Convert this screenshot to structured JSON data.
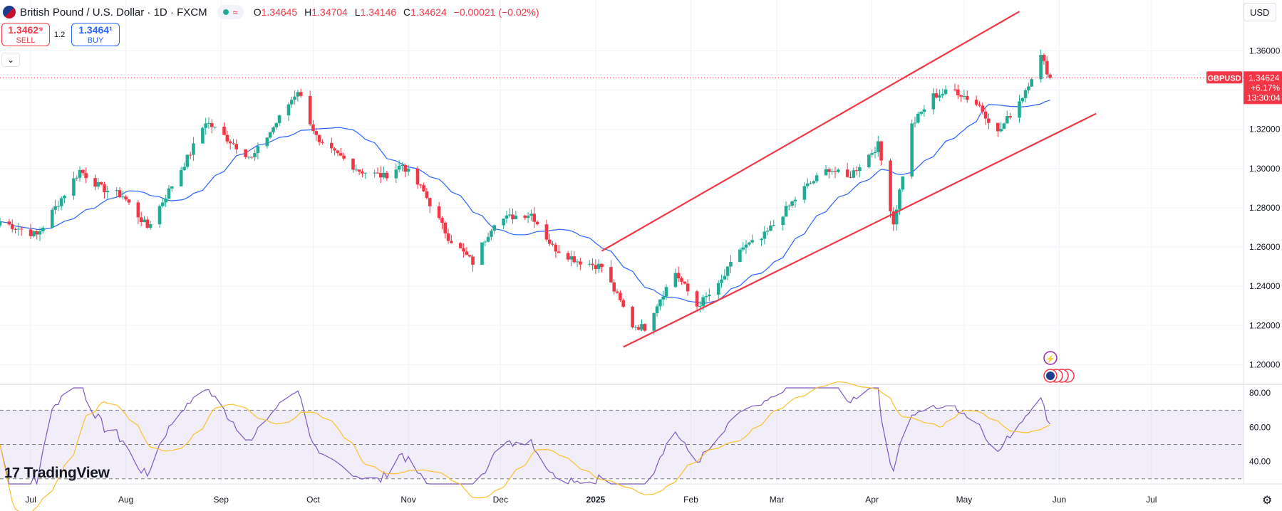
{
  "header": {
    "symbol_title": "British Pound / U.S. Dollar · 1D · FXCM",
    "ohlc": [
      {
        "k": "O",
        "v": "1.34645"
      },
      {
        "k": "H",
        "v": "1.34704"
      },
      {
        "k": "L",
        "v": "1.34146"
      },
      {
        "k": "C",
        "v": "1.34624"
      },
      {
        "k": "",
        "v": "−0.00021 (−0.02%)"
      }
    ]
  },
  "trade": {
    "sell_price": "1.3462⁹",
    "sell_label": "SELL",
    "spread": "1.2",
    "buy_price": "1.3464¹",
    "buy_label": "BUY"
  },
  "currency": "USD",
  "price_tag": {
    "symbol": "GBPUSD",
    "price": "1.34624",
    "change": "+6.17%",
    "countdown": "13:30:04"
  },
  "brand": "TradingView",
  "colors": {
    "up": "#22ab94",
    "down": "#f23645",
    "ma": "#2962ff",
    "rsi": "#7e57c2",
    "rsi_ma": "#fbc02d",
    "channel": "#f23645"
  },
  "chart_data": [
    {
      "type": "candlestick",
      "title": "British Pound / U.S. Dollar · 1D · FXCM",
      "ylim": [
        1.19,
        1.375
      ],
      "y_ticks": [
        "1.36000",
        "1.34000",
        "1.32000",
        "1.30000",
        "1.28000",
        "1.26000",
        "1.24000",
        "1.22000",
        "1.20000"
      ],
      "x_ticks": [
        "Jul",
        "Aug",
        "Sep",
        "Oct",
        "Nov",
        "Dec",
        "2025",
        "Feb",
        "Mar",
        "Apr",
        "May",
        "Jun",
        "Jul"
      ],
      "x_tick_dates": [
        "2024-07-01",
        "2024-08-01",
        "2024-09-01",
        "2024-10-01",
        "2024-11-01",
        "2024-12-01",
        "2025-01-01",
        "2025-02-01",
        "2025-03-01",
        "2025-04-01",
        "2025-05-01",
        "2025-06-01",
        "2025-07-01"
      ],
      "x_range": [
        "2024-06-21",
        "2025-07-31"
      ],
      "last_price": 1.34624,
      "close_waypoints": [
        [
          "2024-06-21",
          1.273
        ],
        [
          "2024-07-03",
          1.266
        ],
        [
          "2024-07-17",
          1.299
        ],
        [
          "2024-07-24",
          1.29
        ],
        [
          "2024-07-31",
          1.286
        ],
        [
          "2024-08-05",
          1.276
        ],
        [
          "2024-08-08",
          1.27
        ],
        [
          "2024-08-14",
          1.286
        ],
        [
          "2024-08-22",
          1.308
        ],
        [
          "2024-08-27",
          1.324
        ],
        [
          "2024-09-04",
          1.314
        ],
        [
          "2024-09-11",
          1.305
        ],
        [
          "2024-09-18",
          1.321
        ],
        [
          "2024-09-26",
          1.34
        ],
        [
          "2024-10-03",
          1.312
        ],
        [
          "2024-10-10",
          1.306
        ],
        [
          "2024-10-16",
          1.299
        ],
        [
          "2024-10-24",
          1.296
        ],
        [
          "2024-10-30",
          1.302
        ],
        [
          "2024-11-06",
          1.288
        ],
        [
          "2024-11-14",
          1.265
        ],
        [
          "2024-11-22",
          1.252
        ],
        [
          "2024-11-29",
          1.273
        ],
        [
          "2024-12-06",
          1.276
        ],
        [
          "2024-12-11",
          1.277
        ],
        [
          "2024-12-18",
          1.26
        ],
        [
          "2024-12-26",
          1.253
        ],
        [
          "2025-01-03",
          1.25
        ],
        [
          "2025-01-07",
          1.238
        ],
        [
          "2025-01-13",
          1.22
        ],
        [
          "2025-01-17",
          1.219
        ],
        [
          "2025-01-22",
          1.234
        ],
        [
          "2025-01-27",
          1.247
        ],
        [
          "2025-02-03",
          1.23
        ],
        [
          "2025-02-10",
          1.24
        ],
        [
          "2025-02-17",
          1.259
        ],
        [
          "2025-02-24",
          1.264
        ],
        [
          "2025-03-04",
          1.279
        ],
        [
          "2025-03-10",
          1.29
        ],
        [
          "2025-03-18",
          1.3
        ],
        [
          "2025-03-24",
          1.295
        ],
        [
          "2025-04-03",
          1.312
        ],
        [
          "2025-04-08",
          1.272
        ],
        [
          "2025-04-14",
          1.322
        ],
        [
          "2025-04-21",
          1.337
        ],
        [
          "2025-04-28",
          1.34
        ],
        [
          "2025-05-06",
          1.332
        ],
        [
          "2025-05-12",
          1.318
        ],
        [
          "2025-05-20",
          1.337
        ],
        [
          "2025-05-26",
          1.357
        ],
        [
          "2025-05-29",
          1.3462
        ]
      ],
      "moving_average": {
        "period": 20,
        "color": "#2962ff"
      },
      "trend_channel": {
        "upper": [
          [
            "2025-01-03",
            1.258
          ],
          [
            "2025-05-19",
            1.38
          ]
        ],
        "lower": [
          [
            "2025-01-10",
            1.209
          ],
          [
            "2025-06-13",
            1.328
          ]
        ]
      },
      "current_price_label": {
        "symbol": "GBPUSD",
        "price": "1.34624",
        "change": "+6.17%",
        "countdown": "13:30:04"
      }
    },
    {
      "type": "line",
      "title": "",
      "ylim": [
        27,
        83
      ],
      "y_ticks": [
        "80.00",
        "60.00",
        "40.00"
      ],
      "bands": [
        70,
        50,
        30
      ],
      "series": [
        {
          "name": "",
          "color": "#7e57c2",
          "source": "RSI 14"
        },
        {
          "name": "",
          "color": "#fbc02d",
          "source": "RSI moving average"
        }
      ]
    }
  ]
}
